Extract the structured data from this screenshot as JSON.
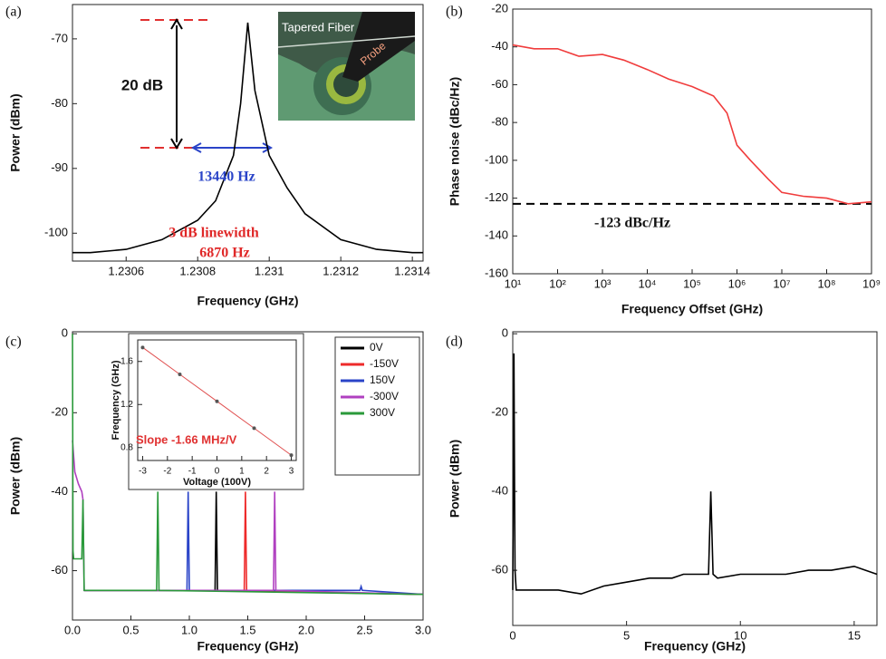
{
  "chart_data": [
    {
      "type": "line",
      "label": "(a)",
      "xlabel": "Frequency (GHz)",
      "ylabel": "Power (dBm)",
      "xlim": [
        1.23045,
        1.23143
      ],
      "xticks": [
        1.2306,
        1.2308,
        1.231,
        1.2312,
        1.2314
      ],
      "ylim": [
        -104.3,
        -64.7
      ],
      "yticks": [
        -70,
        -80,
        -90,
        -100
      ],
      "series": [
        {
          "color": "#000000",
          "x": [
            1.23045,
            1.2305,
            1.2306,
            1.2307,
            1.2308,
            1.23085,
            1.2309,
            1.23092,
            1.23094,
            1.23096,
            1.231,
            1.23105,
            1.2311,
            1.2312,
            1.2313,
            1.2314,
            1.23143
          ],
          "values": [
            -103,
            -103,
            -102.5,
            -101,
            -98,
            -95,
            -88,
            -80,
            -67.5,
            -78,
            -88,
            -93,
            -97,
            -101,
            -102.5,
            -103,
            -103
          ]
        }
      ],
      "annotations": [
        "20 dB",
        "13440 Hz",
        "3 dB linewidth",
        "6870 Hz"
      ],
      "inset_texts": [
        "Tapered Fiber",
        "Probe"
      ]
    },
    {
      "type": "line",
      "label": "(b)",
      "xlabel": "Frequency Offset (GHz)",
      "ylabel": "Phase noise (dBc/Hz)",
      "xlog": true,
      "xlim": [
        10,
        1000000000
      ],
      "xticks": [
        {
          "value": 10,
          "label": "10¹"
        },
        {
          "value": 100,
          "label": "10²"
        },
        {
          "value": 1000,
          "label": "10³"
        },
        {
          "value": 10000,
          "label": "10⁴"
        },
        {
          "value": 100000,
          "label": "10⁵"
        },
        {
          "value": 1000000,
          "label": "10⁶"
        },
        {
          "value": 10000000,
          "label": "10⁷"
        },
        {
          "value": 100000000,
          "label": "10⁸"
        },
        {
          "value": 1000000000,
          "label": "10⁹"
        }
      ],
      "ylim": [
        -160,
        -20
      ],
      "yticks": [
        -20,
        -40,
        -60,
        -80,
        -100,
        -120,
        -140,
        -160
      ],
      "series": [
        {
          "color": "#f03c3c",
          "x": [
            10,
            30,
            100,
            300,
            1000,
            3000,
            10000,
            30000,
            100000,
            300000,
            600000,
            1000000,
            2000000,
            5000000,
            10000000,
            30000000,
            100000000,
            300000000,
            1000000000
          ],
          "values": [
            -39,
            -41,
            -41,
            -45,
            -44,
            -47,
            -52,
            -57,
            -61,
            -66,
            -75,
            -92,
            -100,
            -110,
            -117,
            -119,
            -120,
            -123,
            -122
          ]
        }
      ],
      "reference_line": {
        "value": -123,
        "label": "-123 dBc/Hz"
      }
    },
    {
      "type": "line",
      "label": "(c)",
      "xlabel": "Frequency (GHz)",
      "ylabel": "Power (dBm)",
      "xlim": [
        0,
        3
      ],
      "xticks": [
        {
          "value": 0,
          "label": "0.0"
        },
        {
          "value": 0.5,
          "label": "0.5"
        },
        {
          "value": 1,
          "label": "1.0"
        },
        {
          "value": 1.5,
          "label": "1.5"
        },
        {
          "value": 2,
          "label": "2.0"
        },
        {
          "value": 2.5,
          "label": "2.5"
        },
        {
          "value": 3,
          "label": "3.0"
        }
      ],
      "ylim": [
        -72.5,
        0.5
      ],
      "yticks": [
        0,
        -20,
        -40,
        -60
      ],
      "series": [
        {
          "name": "0V",
          "color": "#000000",
          "x": [
            0.1,
            1.22,
            1.23,
            1.24,
            3.0
          ],
          "values": [
            -65,
            -65,
            -40,
            -65,
            -66
          ]
        },
        {
          "name": "-150V",
          "color": "#ee2a2a",
          "x": [
            0.1,
            1.47,
            1.48,
            1.49,
            3.0
          ],
          "values": [
            -65,
            -65,
            -40,
            -65,
            -66
          ]
        },
        {
          "name": "150V",
          "color": "#2a44c8",
          "x": [
            0.1,
            0.98,
            0.99,
            1.0,
            2.46,
            2.47,
            2.48,
            3.0
          ],
          "values": [
            -65,
            -65,
            -40,
            -65,
            -65,
            -64,
            -65,
            -66
          ]
        },
        {
          "name": "-300V",
          "color": "#b040c0",
          "x": [
            0,
            0.02,
            0.05,
            0.08,
            0.09,
            0.1,
            1.72,
            1.73,
            1.74,
            3.0
          ],
          "values": [
            -27,
            -35,
            -38,
            -40,
            -42,
            -65,
            -65,
            -40,
            -65,
            -66
          ]
        },
        {
          "name": "300V",
          "color": "#2a9a3a",
          "x": [
            0,
            0.005,
            0.01,
            0.03,
            0.08,
            0.09,
            0.1,
            0.72,
            0.73,
            0.74,
            3.0
          ],
          "values": [
            0,
            -55,
            -57,
            -57,
            -57,
            -42,
            -65,
            -65,
            -40,
            -65,
            -66
          ]
        }
      ]
    },
    {
      "type": "line",
      "xlabel": "Voltage (100V)",
      "ylabel": "Frequency (GHz)",
      "markers": true,
      "xlim": [
        -3.2,
        3.2
      ],
      "xticks": [
        -3,
        -2,
        -1,
        0,
        1,
        2,
        3
      ],
      "ylim": [
        0.68,
        1.8
      ],
      "yticks": [
        0.8,
        1.2,
        1.6
      ],
      "series": [
        {
          "color": "#e05050",
          "x": [
            -3,
            -1.5,
            0,
            1.5,
            3
          ],
          "values": [
            1.73,
            1.48,
            1.23,
            0.98,
            0.73
          ]
        }
      ],
      "annotations": [
        "Slope -1.66 MHz/V"
      ]
    },
    {
      "type": "line",
      "label": "(d)",
      "xlabel": "Frequency (GHz)",
      "ylabel": "Power (dBm)",
      "xlim": [
        0,
        16
      ],
      "xticks": [
        0,
        5,
        10,
        15
      ],
      "ylim": [
        -74,
        0.5
      ],
      "yticks": [
        0,
        -20,
        -40,
        -60
      ],
      "series": [
        {
          "color": "#000000",
          "x": [
            0,
            0.05,
            0.08,
            0.1,
            0.15,
            0.2,
            1,
            2,
            3,
            4,
            5,
            6,
            7,
            7.5,
            8,
            8.6,
            8.7,
            8.8,
            9,
            10,
            11,
            12,
            13,
            14,
            15,
            15.5,
            16
          ],
          "values": [
            -65,
            -5,
            -40,
            -60,
            -65,
            -65,
            -65,
            -65,
            -66,
            -64,
            -63,
            -62,
            -62,
            -61,
            -61,
            -61,
            -40,
            -61,
            -62,
            -61,
            -61,
            -61,
            -60,
            -60,
            -59,
            -60,
            -61
          ]
        }
      ]
    }
  ]
}
